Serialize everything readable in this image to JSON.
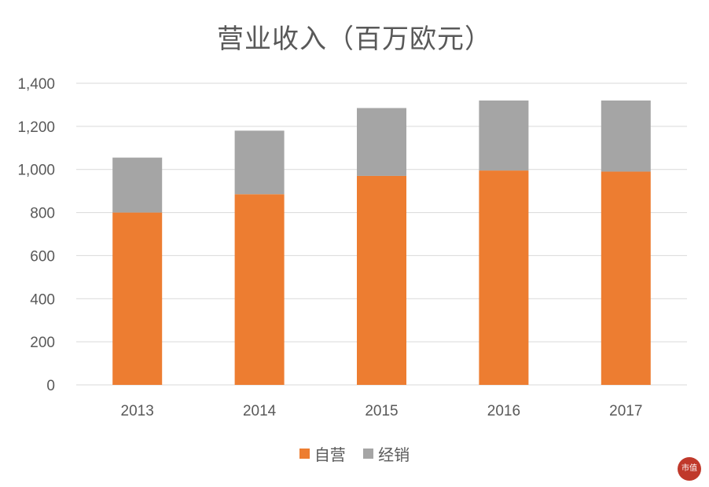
{
  "chart_data": {
    "type": "bar",
    "stacked": true,
    "title": "营业收入（百万欧元）",
    "categories": [
      "2013",
      "2014",
      "2015",
      "2016",
      "2017"
    ],
    "series": [
      {
        "name": "自营",
        "color": "#ED7D31",
        "values": [
          800,
          885,
          970,
          995,
          990
        ]
      },
      {
        "name": "经销",
        "color": "#A5A5A5",
        "values": [
          255,
          295,
          315,
          325,
          330
        ]
      }
    ],
    "ylim": [
      0,
      1400
    ],
    "yticks": [
      0,
      200,
      400,
      600,
      800,
      1000,
      1200,
      1400
    ],
    "ytick_labels": [
      "0",
      "200",
      "400",
      "600",
      "800",
      "1,000",
      "1,200",
      "1,400"
    ],
    "grid": true,
    "legend_position": "bottom"
  }
}
